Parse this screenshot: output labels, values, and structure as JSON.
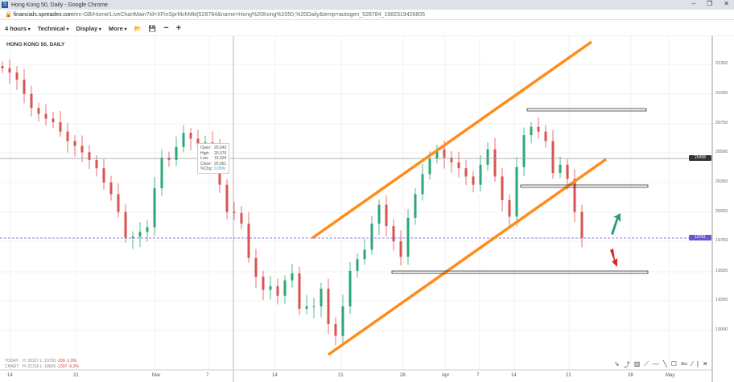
{
  "window": {
    "title": "Hong Kong 50, Daily - Google Chrome",
    "url_host": "financials.spreadex.com",
    "url_path": "/en-GB/Home/LiveChartMain?id=XFinSprMchMkt|528784&name=Hong%20Kong%2050,%20Daily&temp=autogen_528784_1682319426605",
    "icon": "S"
  },
  "toolbar": {
    "interval": "4 hours",
    "technical": "Technical",
    "display": "Display",
    "more": "More"
  },
  "chart_title": "HONG KONG 50, DAILY",
  "tooltip": {
    "open_label": "Open:",
    "open": "20,043",
    "high_label": "High:",
    "high": "20,076",
    "low_label": "Low:",
    "low": "19,924",
    "close_label": "Close:",
    "close": "20,061",
    "chg_label": "%Chg:",
    "chg": "0.09%"
  },
  "stats": {
    "today_label": "TODAY:",
    "today_h": "H: 20127",
    "today_l": "L: 19720",
    "today_chg": "-209",
    "today_pct": "-1.0%",
    "chart_label": "CHART:",
    "chart_h": "H: 21316",
    "chart_l": "L: 18826",
    "chart_chg": "-1307",
    "chart_pct": "-6.2%"
  },
  "y_ticks": [
    "21250",
    "21000",
    "20750",
    "20500",
    "20250",
    "20000",
    "19750",
    "19500",
    "19250",
    "19000"
  ],
  "x_ticks": [
    "14",
    "21",
    "Mar",
    "7",
    "14",
    "21",
    "28",
    "Apr",
    "7",
    "14",
    "21",
    "28",
    "May"
  ],
  "price_badges": {
    "crosshair": "20458",
    "last": "19781"
  },
  "colors": {
    "up": "#2aa876",
    "down": "#d9534f",
    "channel": "#ff8c1a",
    "last_price": "#6a5acd",
    "arrow_up": "#2a9a80",
    "arrow_down": "#d62828"
  },
  "chart_data": {
    "type": "candlestick",
    "ylim": [
      18800,
      21400
    ],
    "closes": [
      21216,
      21180,
      21120,
      21000,
      20880,
      20830,
      20790,
      20760,
      20680,
      20600,
      20560,
      20505,
      20440,
      20370,
      20250,
      20150,
      20000,
      19780,
      19790,
      19830,
      19870,
      20200,
      20460,
      20440,
      20550,
      20670,
      20620,
      20570,
      20590,
      20550,
      20230,
      20000,
      19990,
      19900,
      19610,
      19450,
      19340,
      19370,
      19290,
      19420,
      19480,
      19180,
      19200,
      19200,
      19350,
      19050,
      18950,
      19200,
      19500,
      19600,
      19680,
      19900,
      20060,
      19880,
      19750,
      19620,
      19950,
      20150,
      20320,
      20450,
      20530,
      20460,
      20420,
      20370,
      20300,
      20230,
      20400,
      20530,
      20300,
      20100,
      19960,
      20380,
      20650,
      20720,
      20680,
      20600,
      20330,
      20400,
      20280,
      20000,
      19781
    ]
  }
}
